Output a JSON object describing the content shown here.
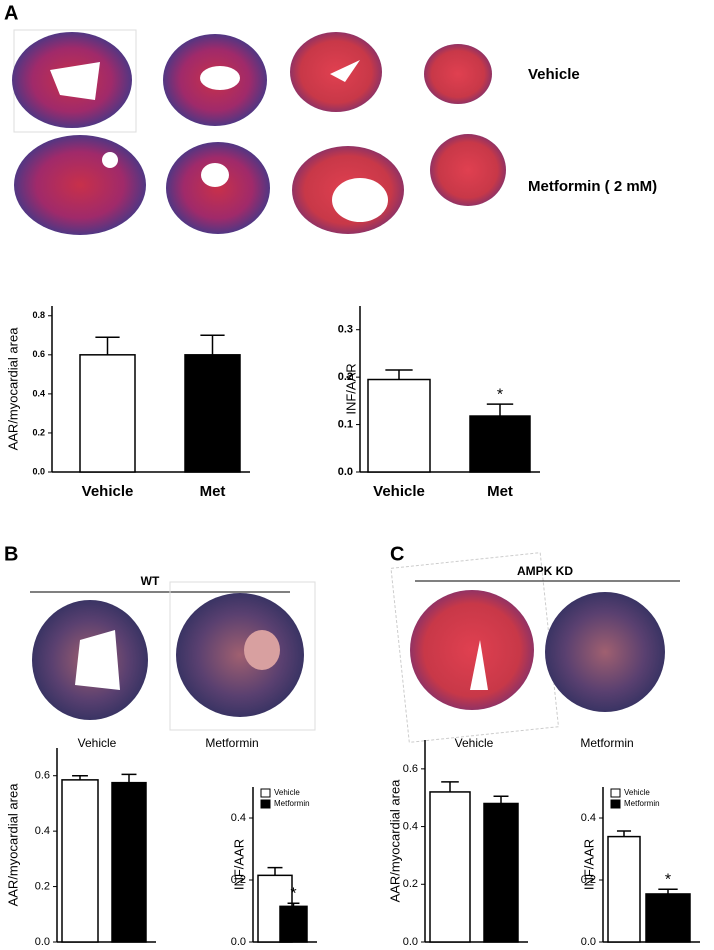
{
  "panels": {
    "A": {
      "label": "A",
      "row_labels": [
        "Vehicle",
        "Metformin ( 2 mM)"
      ]
    },
    "B": {
      "label": "B",
      "group": "WT",
      "image_labels": [
        "Vehicle",
        "Metformin"
      ]
    },
    "C": {
      "label": "C",
      "group": "AMPK KD",
      "image_labels": [
        "Vehicle",
        "Metformin"
      ]
    }
  },
  "chart_data": [
    {
      "type": "bar",
      "y_label": "AAR/myocardial area",
      "categories": [
        "Vehicle",
        "Met"
      ],
      "values": [
        0.6,
        0.6
      ],
      "errors": [
        0.09,
        0.1
      ],
      "colors": [
        "#ffffff",
        "#000000"
      ],
      "ylim": [
        0,
        0.85
      ],
      "yticks": [
        {
          "value": 0,
          "label": "0.0"
        },
        0.2,
        0.4,
        0.6,
        0.8
      ]
    },
    {
      "type": "bar",
      "y_label": "INF/AAR",
      "categories": [
        "Vehicle",
        "Met"
      ],
      "values": [
        0.195,
        0.118
      ],
      "errors": [
        0.02,
        0.025
      ],
      "colors": [
        "#ffffff",
        "#000000"
      ],
      "significance": [
        null,
        "*"
      ],
      "ylim": [
        0,
        0.35
      ],
      "yticks": [
        {
          "value": 0,
          "label": "0.0"
        },
        0.1,
        0.2,
        0.3
      ]
    },
    {
      "type": "bar",
      "y_label": "AAR/myocardial area",
      "categories": [
        null,
        null
      ],
      "values": [
        0.585,
        0.575
      ],
      "errors": [
        0.015,
        0.03
      ],
      "colors": [
        "#ffffff",
        "#000000"
      ],
      "ylim": [
        0,
        0.7
      ],
      "yticks": [
        {
          "value": 0,
          "label": "0.0"
        },
        0.2,
        0.4,
        0.6
      ]
    },
    {
      "type": "bar",
      "y_label": "INF/AAR",
      "legend": "upper left",
      "series": [
        {
          "name": "Vehicle",
          "color": "#ffffff",
          "values": [
            0.215
          ],
          "errors": [
            0.025
          ]
        },
        {
          "name": "Metformin",
          "color": "#000000",
          "values": [
            0.115
          ],
          "errors": [
            0.01
          ],
          "significance": [
            "*"
          ]
        }
      ],
      "ylim": [
        0,
        0.5
      ],
      "yticks": [
        {
          "value": 0,
          "label": "0.0"
        },
        0.2,
        0.4
      ]
    },
    {
      "type": "bar",
      "y_label": "AAR/myocardial area",
      "categories": [
        null,
        null
      ],
      "values": [
        0.52,
        0.48
      ],
      "errors": [
        0.035,
        0.025
      ],
      "colors": [
        "#ffffff",
        "#000000"
      ],
      "ylim": [
        0,
        0.7
      ],
      "yticks": [
        {
          "value": 0,
          "label": "0.0"
        },
        0.2,
        0.4,
        0.6
      ]
    },
    {
      "type": "bar",
      "y_label": "INF/AAR",
      "legend": "upper left",
      "series": [
        {
          "name": "Vehicle",
          "color": "#ffffff",
          "values": [
            0.34
          ],
          "errors": [
            0.018
          ]
        },
        {
          "name": "Metformin",
          "color": "#000000",
          "values": [
            0.155
          ],
          "errors": [
            0.015
          ],
          "significance": [
            "*"
          ]
        }
      ],
      "ylim": [
        0,
        0.5
      ],
      "yticks": [
        {
          "value": 0,
          "label": "0.0"
        },
        0.2,
        0.4
      ]
    }
  ]
}
